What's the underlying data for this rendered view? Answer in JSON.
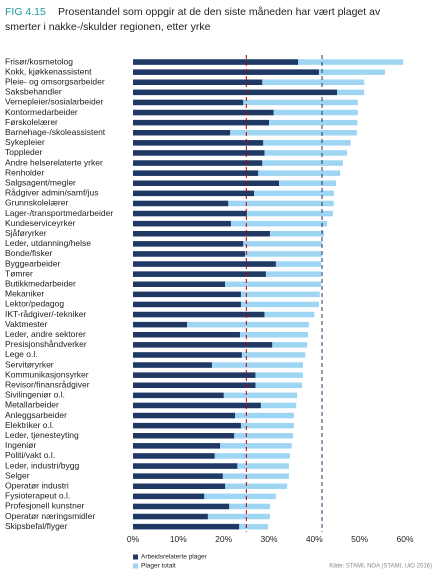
{
  "chart_data": {
    "type": "overlap-barh",
    "figure_label": "FIG 4.15",
    "title": [
      "Prosentandel som oppgir at de den siste måneden har vært plaget av",
      "smerter i nakke-/skulder regionen, etter yrke"
    ],
    "categories": [
      "Frisør/kosmetolog",
      "Kokk, kjøkkenassistent",
      "Pleie- og omsorgsarbeider",
      "Saksbehandler",
      "Vernepleier/sosialarbeider",
      "Kontormedarbeider",
      "Førskolelærer",
      "Barnehage-/skoleassistent",
      "Sykepleier",
      "Toppleder",
      "Andre helserelaterte yrker",
      "Renholder",
      "Salgsagent/megler",
      "Rådgiver admin/samf/jus",
      "Grunnskolelærer",
      "Lager-/transportmedarbeider",
      "Kundeserviceyrker",
      "Sjåføryrker",
      "Leder, utdanning/helse",
      "Bonde/fisker",
      "Byggearbeider",
      "Tømrer",
      "Butikkmedarbeider",
      "Mekaniker",
      "Lektor/pedagog",
      "IKT-rådgiver/-tekniker",
      "Vaktmester",
      "Leder, andre sektorer",
      "Presisjonshåndverker",
      "Lege o.l.",
      "Servitøryrker",
      "Kommunikasjonsyrker",
      "Revisor/finansrådgiver",
      "Sivilingeniør o.l.",
      "Metallarbeider",
      "Anleggsarbeider",
      "Elektriker o.l.",
      "Leder, tjenesteyting",
      "Ingeniør",
      "Politi/vakt o.l.",
      "Leder, industri/bygg",
      "Selger",
      "Operatør industri",
      "Fysioterapeut o.l.",
      "Profesjonell kunstner",
      "Operatør næringsmidler",
      "Skipsbefal/flyger"
    ],
    "series": [
      {
        "name": "Arbeidsrelaterte plager",
        "color": "#1f3864",
        "values": [
          36.4,
          41,
          28.5,
          45,
          24.3,
          31,
          30,
          21.4,
          28.7,
          29,
          28.5,
          27.6,
          32.2,
          26.7,
          21,
          25.1,
          21.6,
          30.2,
          24.3,
          24.7,
          31.5,
          29.3,
          20.3,
          23.8,
          23.8,
          29,
          11.9,
          23.6,
          30.7,
          24,
          17.4,
          27,
          27,
          20,
          28.2,
          22.5,
          23.8,
          22.3,
          19.2,
          18,
          23,
          19.8,
          20.3,
          15.7,
          21.2,
          16.5,
          23.4
        ]
      },
      {
        "name": "Plager totalt",
        "color": "#9dd5f2",
        "values": [
          59.6,
          55.6,
          51,
          51,
          49.6,
          49.6,
          49.5,
          49.4,
          48,
          47.2,
          46.3,
          45.7,
          44.8,
          44.3,
          44.3,
          44.1,
          42.8,
          42.1,
          41.7,
          41.7,
          41.5,
          41.5,
          41.5,
          41.2,
          41,
          40,
          38.8,
          38.6,
          38.4,
          38,
          37.5,
          37.5,
          37.3,
          36.2,
          36,
          35.5,
          35.5,
          35.3,
          35,
          34.6,
          34.4,
          34.4,
          34,
          31.5,
          30.2,
          30.2,
          29.8
        ]
      }
    ],
    "reference_lines": [
      {
        "value": 25,
        "color": "#c00000"
      },
      {
        "value": 41.7,
        "color": "#1f3864"
      }
    ],
    "xlim": [
      0,
      60
    ],
    "xticks": [
      {
        "value": 0,
        "label": "0%"
      },
      {
        "value": 10,
        "label": "10%"
      },
      {
        "value": 20,
        "label": "20%"
      },
      {
        "value": 30,
        "label": "30%"
      },
      {
        "value": 40,
        "label": "40%"
      },
      {
        "value": 50,
        "label": "50%"
      },
      {
        "value": 60,
        "label": "60%"
      }
    ],
    "source": "Kilde: STAMI, NOA (STAMI, UiO 2016)"
  }
}
